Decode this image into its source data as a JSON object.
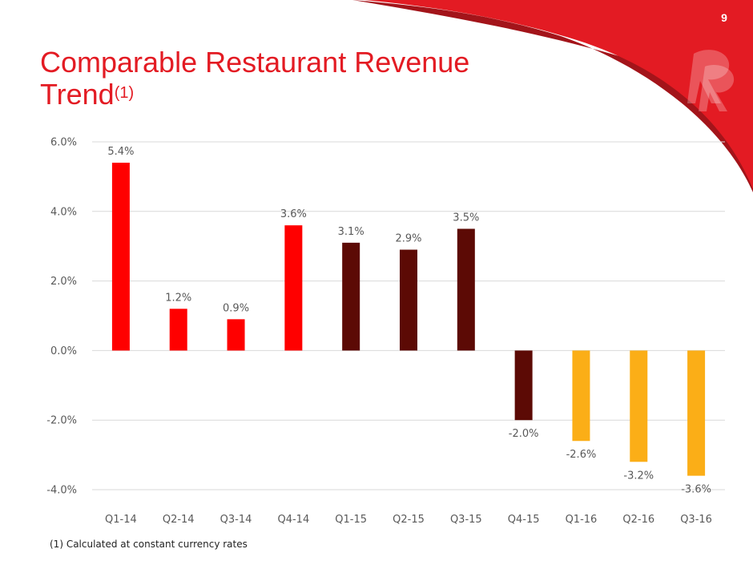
{
  "slide": {
    "page_number": "9",
    "title_main": "Comparable Restaurant Revenue Trend",
    "title_sup": "(1)",
    "footnote": "(1) Calculated at constant currency rates",
    "accent": "#e31b23"
  },
  "chart_data": {
    "type": "bar",
    "title": "",
    "xlabel": "",
    "ylabel": "",
    "ylim": [
      -4.0,
      6.0
    ],
    "yticks": [
      "6.0%",
      "4.0%",
      "2.0%",
      "0.0%",
      "-2.0%",
      "-4.0%"
    ],
    "grid": true,
    "legend": "none",
    "categories": [
      "Q1-14",
      "Q2-14",
      "Q3-14",
      "Q4-14",
      "Q1-15",
      "Q2-15",
      "Q3-15",
      "Q4-15",
      "Q1-16",
      "Q2-16",
      "Q3-16"
    ],
    "values": [
      5.4,
      1.2,
      0.9,
      3.6,
      3.1,
      2.9,
      3.5,
      -2.0,
      -2.6,
      -3.2,
      -3.6
    ],
    "data_labels": [
      "5.4%",
      "1.2%",
      "0.9%",
      "3.6%",
      "3.1%",
      "2.9%",
      "3.5%",
      "-2.0%",
      "-2.6%",
      "-3.2%",
      "-3.6%"
    ],
    "bar_colors": [
      "#ff0000",
      "#ff0000",
      "#ff0000",
      "#ff0000",
      "#5c0a05",
      "#5c0a05",
      "#5c0a05",
      "#5c0a05",
      "#fbae17",
      "#fbae17",
      "#fbae17"
    ]
  }
}
